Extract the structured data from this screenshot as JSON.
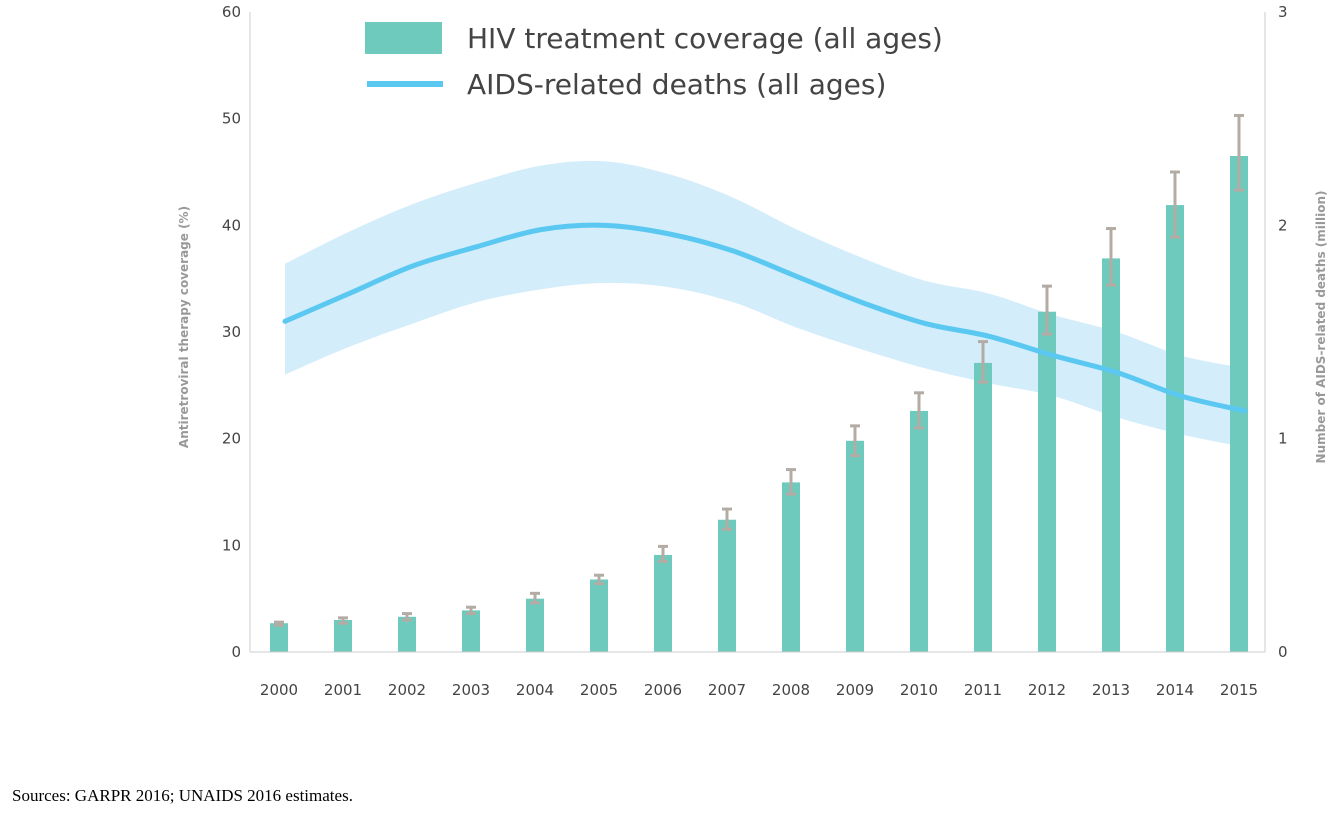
{
  "chart_data": {
    "type": "bar",
    "categories": [
      "2000",
      "2001",
      "2002",
      "2003",
      "2004",
      "2005",
      "2006",
      "2007",
      "2008",
      "2009",
      "2010",
      "2011",
      "2012",
      "2013",
      "2014",
      "2015"
    ],
    "ylabel_left": "Antiretroviral therapy coverage (%)",
    "ylabel_right": "Number of AIDS-related deaths (million)",
    "ylim_left": [
      0,
      60
    ],
    "ylim_right": [
      0,
      3
    ],
    "yticks_left": [
      "0",
      "10",
      "20",
      "30",
      "40",
      "50",
      "60"
    ],
    "yticks_right": [
      "0",
      "1",
      "2",
      "3"
    ],
    "grid": false,
    "legend_position": "top-left",
    "series": [
      {
        "name": "HIV treatment coverage (all ages)",
        "type": "bar",
        "axis": "left",
        "color": "#6ecabd",
        "values": [
          2.7,
          3.0,
          3.3,
          3.9,
          5.0,
          6.8,
          9.1,
          12.4,
          15.9,
          19.8,
          22.6,
          27.1,
          31.9,
          36.9,
          41.9,
          46.5
        ],
        "error_low": [
          2.5,
          2.7,
          3.0,
          3.6,
          4.6,
          6.4,
          8.5,
          11.5,
          14.8,
          18.4,
          21.0,
          25.3,
          29.8,
          34.4,
          38.9,
          43.3
        ],
        "error_high": [
          2.8,
          3.2,
          3.6,
          4.2,
          5.5,
          7.2,
          9.9,
          13.4,
          17.1,
          21.2,
          24.3,
          29.1,
          34.3,
          39.7,
          45.0,
          50.3
        ]
      },
      {
        "name": "AIDS-related deaths (all ages)",
        "type": "line",
        "axis": "right",
        "color": "#5bc8f2",
        "band_color": "#d3edfa",
        "values": [
          1.55,
          1.68,
          1.81,
          1.9,
          1.98,
          2.0,
          1.96,
          1.88,
          1.76,
          1.64,
          1.54,
          1.48,
          1.39,
          1.31,
          1.2,
          1.13
        ],
        "band_low": [
          1.3,
          1.43,
          1.54,
          1.64,
          1.7,
          1.73,
          1.71,
          1.64,
          1.52,
          1.42,
          1.33,
          1.26,
          1.2,
          1.1,
          1.02,
          0.96
        ],
        "band_high": [
          1.82,
          1.97,
          2.1,
          2.2,
          2.28,
          2.3,
          2.24,
          2.13,
          1.98,
          1.85,
          1.74,
          1.68,
          1.58,
          1.5,
          1.39,
          1.33
        ]
      }
    ]
  },
  "legend": {
    "bar_label": "HIV treatment coverage (all ages)",
    "line_label": "AIDS-related deaths (all ages)"
  },
  "source_note": "Sources: GARPR 2016; UNAIDS 2016 estimates."
}
